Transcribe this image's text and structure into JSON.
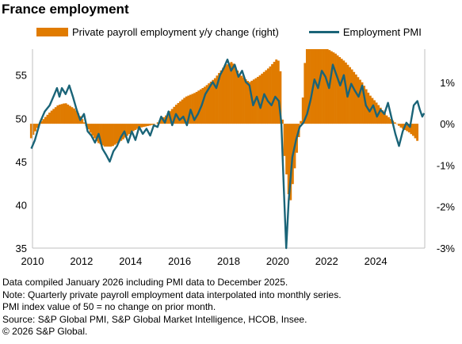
{
  "chart_data": {
    "type": "bar+line",
    "title": "France employment",
    "series": [
      {
        "name": "Private payroll employment y/y change (right)",
        "kind": "bar",
        "axis": "right",
        "color": "#e07b00",
        "points": [
          [
            2009.9,
            -0.35
          ],
          [
            2010.3,
            0.05
          ],
          [
            2010.7,
            0.3
          ],
          [
            2011.0,
            0.45
          ],
          [
            2011.3,
            0.5
          ],
          [
            2011.7,
            0.35
          ],
          [
            2012.0,
            0.1
          ],
          [
            2012.3,
            -0.2
          ],
          [
            2012.6,
            -0.45
          ],
          [
            2012.9,
            -0.55
          ],
          [
            2013.2,
            -0.55
          ],
          [
            2013.6,
            -0.4
          ],
          [
            2014.0,
            -0.2
          ],
          [
            2014.3,
            -0.1
          ],
          [
            2014.7,
            -0.05
          ],
          [
            2015.0,
            0.0
          ],
          [
            2015.4,
            0.2
          ],
          [
            2015.8,
            0.45
          ],
          [
            2016.2,
            0.65
          ],
          [
            2016.6,
            0.75
          ],
          [
            2017.0,
            0.9
          ],
          [
            2017.4,
            1.1
          ],
          [
            2017.8,
            1.4
          ],
          [
            2018.1,
            1.5
          ],
          [
            2018.4,
            1.2
          ],
          [
            2018.8,
            1.0
          ],
          [
            2019.2,
            1.15
          ],
          [
            2019.6,
            1.35
          ],
          [
            2019.9,
            1.55
          ],
          [
            2020.05,
            1.5
          ],
          [
            2020.2,
            -0.6
          ],
          [
            2020.35,
            -1.4
          ],
          [
            2020.45,
            -2.0
          ],
          [
            2020.6,
            -1.3
          ],
          [
            2020.8,
            -0.4
          ],
          [
            2020.95,
            0.3
          ],
          [
            2021.1,
            1.8
          ],
          [
            2021.4,
            1.8
          ],
          [
            2021.7,
            1.8
          ],
          [
            2022.0,
            1.8
          ],
          [
            2022.3,
            1.7
          ],
          [
            2022.7,
            1.5
          ],
          [
            2023.0,
            1.3
          ],
          [
            2023.4,
            1.0
          ],
          [
            2023.7,
            0.7
          ],
          [
            2024.0,
            0.5
          ],
          [
            2024.4,
            0.2
          ],
          [
            2024.7,
            0.05
          ],
          [
            2025.0,
            -0.1
          ],
          [
            2025.3,
            -0.2
          ],
          [
            2025.5,
            -0.3
          ],
          [
            2025.7,
            -0.45
          ]
        ]
      },
      {
        "name": "Employment PMI",
        "kind": "line",
        "axis": "left",
        "color": "#1a6478",
        "points": [
          [
            2009.95,
            46.5
          ],
          [
            2010.1,
            47.5
          ],
          [
            2010.3,
            49.5
          ],
          [
            2010.5,
            50.8
          ],
          [
            2010.7,
            51.5
          ],
          [
            2010.9,
            52.8
          ],
          [
            2011.0,
            53.5
          ],
          [
            2011.1,
            52.5
          ],
          [
            2011.2,
            53.5
          ],
          [
            2011.35,
            52.8
          ],
          [
            2011.5,
            53.8
          ],
          [
            2011.65,
            52.5
          ],
          [
            2011.8,
            51.0
          ],
          [
            2011.95,
            49.8
          ],
          [
            2012.1,
            50.5
          ],
          [
            2012.25,
            48.5
          ],
          [
            2012.4,
            48.0
          ],
          [
            2012.55,
            47.2
          ],
          [
            2012.7,
            48.2
          ],
          [
            2012.85,
            46.5
          ],
          [
            2013.0,
            45.8
          ],
          [
            2013.15,
            45.0
          ],
          [
            2013.3,
            46.2
          ],
          [
            2013.45,
            46.8
          ],
          [
            2013.6,
            47.8
          ],
          [
            2013.75,
            48.5
          ],
          [
            2013.9,
            47.2
          ],
          [
            2014.05,
            48.5
          ],
          [
            2014.2,
            47.5
          ],
          [
            2014.35,
            49.0
          ],
          [
            2014.5,
            48.2
          ],
          [
            2014.65,
            48.8
          ],
          [
            2014.8,
            48.0
          ],
          [
            2014.95,
            49.2
          ],
          [
            2015.1,
            49.0
          ],
          [
            2015.25,
            50.2
          ],
          [
            2015.4,
            49.5
          ],
          [
            2015.55,
            50.8
          ],
          [
            2015.7,
            49.2
          ],
          [
            2015.85,
            50.5
          ],
          [
            2016.0,
            49.8
          ],
          [
            2016.15,
            50.2
          ],
          [
            2016.3,
            49.2
          ],
          [
            2016.45,
            51.0
          ],
          [
            2016.6,
            49.8
          ],
          [
            2016.75,
            50.5
          ],
          [
            2016.9,
            51.5
          ],
          [
            2017.05,
            52.8
          ],
          [
            2017.2,
            53.5
          ],
          [
            2017.35,
            54.2
          ],
          [
            2017.5,
            53.5
          ],
          [
            2017.65,
            55.0
          ],
          [
            2017.8,
            55.8
          ],
          [
            2017.95,
            56.8
          ],
          [
            2018.1,
            55.5
          ],
          [
            2018.25,
            56.2
          ],
          [
            2018.4,
            54.8
          ],
          [
            2018.55,
            55.5
          ],
          [
            2018.7,
            54.2
          ],
          [
            2018.85,
            53.8
          ],
          [
            2019.0,
            51.5
          ],
          [
            2019.15,
            52.5
          ],
          [
            2019.3,
            51.2
          ],
          [
            2019.45,
            52.8
          ],
          [
            2019.6,
            52.0
          ],
          [
            2019.75,
            51.5
          ],
          [
            2019.9,
            52.5
          ],
          [
            2020.05,
            52.0
          ],
          [
            2020.15,
            49.5
          ],
          [
            2020.25,
            42.0
          ],
          [
            2020.35,
            35.0
          ],
          [
            2020.45,
            40.5
          ],
          [
            2020.6,
            45.5
          ],
          [
            2020.75,
            47.5
          ],
          [
            2020.9,
            49.0
          ],
          [
            2021.05,
            49.5
          ],
          [
            2021.2,
            50.5
          ],
          [
            2021.35,
            52.2
          ],
          [
            2021.5,
            54.5
          ],
          [
            2021.65,
            53.5
          ],
          [
            2021.8,
            55.5
          ],
          [
            2021.95,
            54.8
          ],
          [
            2022.1,
            53.5
          ],
          [
            2022.25,
            56.2
          ],
          [
            2022.4,
            55.0
          ],
          [
            2022.55,
            53.8
          ],
          [
            2022.7,
            55.0
          ],
          [
            2022.85,
            52.5
          ],
          [
            2023.0,
            54.0
          ],
          [
            2023.15,
            53.2
          ],
          [
            2023.3,
            52.5
          ],
          [
            2023.45,
            53.8
          ],
          [
            2023.6,
            51.5
          ],
          [
            2023.75,
            50.8
          ],
          [
            2023.9,
            51.5
          ],
          [
            2024.05,
            50.2
          ],
          [
            2024.2,
            51.0
          ],
          [
            2024.35,
            50.5
          ],
          [
            2024.5,
            51.8
          ],
          [
            2024.65,
            50.0
          ],
          [
            2024.8,
            48.2
          ],
          [
            2024.95,
            46.8
          ],
          [
            2025.1,
            48.5
          ],
          [
            2025.25,
            49.5
          ],
          [
            2025.4,
            49.0
          ],
          [
            2025.55,
            51.5
          ],
          [
            2025.7,
            52.0
          ],
          [
            2025.8,
            51.0
          ],
          [
            2025.9,
            50.2
          ],
          [
            2025.97,
            50.6
          ]
        ]
      }
    ],
    "x_ticks": [
      "2010",
      "2012",
      "2014",
      "2016",
      "2018",
      "2020",
      "2022",
      "2024"
    ],
    "x_tick_values": [
      2010,
      2012,
      2014,
      2016,
      2018,
      2020,
      2022,
      2024
    ],
    "xlim": [
      2010,
      2026
    ],
    "y_left_ticks": [
      "35",
      "40",
      "45",
      "50",
      "55"
    ],
    "y_left_tick_values": [
      35,
      40,
      45,
      50,
      55
    ],
    "y_left_lim": [
      35,
      58
    ],
    "y_right_ticks": [
      "-3%",
      "-2%",
      "-1%",
      "0%",
      "1%"
    ],
    "y_right_tick_values": [
      -3,
      -2,
      -1,
      0,
      1
    ],
    "y_right_lim": [
      -3,
      1.8
    ],
    "grid": false,
    "legend_position": "top"
  },
  "notes": [
    "Data compiled January 2026 including PMI data to December 2025.",
    "Note: Quarterly private payroll employment data interpolated into monthly series.",
    "PMI index value of 50 = no change on prior month.",
    "Source: S&P Global PMI, S&P Global Market Intelligence, HCOB, Insee.",
    "© 2026 S&P Global."
  ]
}
